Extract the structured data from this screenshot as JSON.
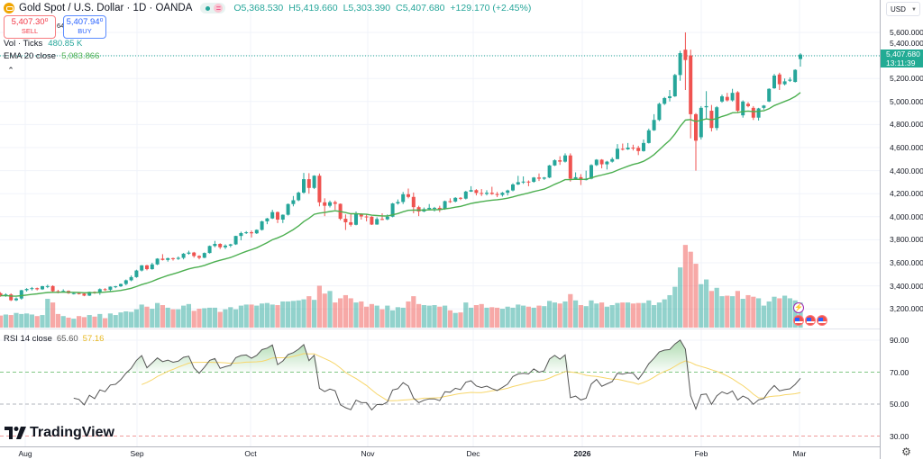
{
  "legend": {
    "symbol": "Gold Spot / U.S. Dollar · 1D · OANDA",
    "open": "O5,368.530",
    "high": "H5,419.660",
    "low": "L5,303.390",
    "close": "C5,407.680",
    "change": "+129.170 (+2.45%)",
    "sell_price": "5,407.30⁰",
    "sell_label": "SELL",
    "spread": "64.0",
    "buy_price": "5,407.94⁰",
    "buy_label": "BUY",
    "vol_label": "Vol · Ticks",
    "vol_value": "480.85 K",
    "ema_label": "EMA 20 close",
    "ema_value": "5,083.866",
    "rsi_label": "RSI 14 close",
    "rsi_value": "65.60",
    "rsi_ma_value": "57.16"
  },
  "price_axis": {
    "currency": "USD",
    "last_price": "5,407.680",
    "countdown": "13:11:39"
  },
  "watermark": "TradingView",
  "colors": {
    "up": "#26a69a",
    "down": "#ef5350",
    "ema": "#4caf50",
    "rsi": "#555555",
    "rsi_ma": "#f7d66a",
    "last_price": "#22ab94"
  },
  "chart_data": {
    "type": "candlestick",
    "y_ticks": [
      "5,600.000",
      "5,400.000",
      "5,200.000",
      "5,000.000",
      "4,800.000",
      "4,600.000",
      "4,400.000",
      "4,200.000",
      "4,000.000",
      "3,800.000",
      "3,600.000",
      "3,400.000",
      "3,200.000"
    ],
    "y_tick_values": [
      5600,
      5400,
      5200,
      5000,
      4800,
      4600,
      4400,
      4200,
      4000,
      3800,
      3600,
      3400,
      3200
    ],
    "rsi_ticks": [
      "90.00",
      "70.00",
      "50.00",
      "30.00"
    ],
    "rsi_tick_values": [
      90,
      70,
      50,
      30
    ],
    "rsi_bands": {
      "upper": 70,
      "middle": 50,
      "lower": 30
    },
    "x_ticks": [
      "Aug",
      "Sep",
      "Oct",
      "Nov",
      "Dec",
      "2026",
      "Feb",
      "Mar"
    ],
    "grid": true,
    "candles": [
      [
        3335,
        3345,
        3305,
        3315
      ],
      [
        3315,
        3335,
        3305,
        3325
      ],
      [
        3325,
        3335,
        3268,
        3275
      ],
      [
        3275,
        3300,
        3268,
        3290
      ],
      [
        3290,
        3365,
        3280,
        3362
      ],
      [
        3362,
        3380,
        3350,
        3373
      ],
      [
        3373,
        3390,
        3360,
        3380
      ],
      [
        3380,
        3385,
        3360,
        3370
      ],
      [
        3370,
        3400,
        3365,
        3397
      ],
      [
        3397,
        3410,
        3380,
        3398
      ],
      [
        3398,
        3405,
        3345,
        3353
      ],
      [
        3353,
        3365,
        3335,
        3348
      ],
      [
        3348,
        3370,
        3345,
        3356
      ],
      [
        3356,
        3360,
        3330,
        3336
      ],
      [
        3336,
        3345,
        3325,
        3336
      ],
      [
        3336,
        3345,
        3325,
        3332
      ],
      [
        3332,
        3340,
        3310,
        3315
      ],
      [
        3315,
        3350,
        3312,
        3348
      ],
      [
        3348,
        3352,
        3330,
        3338
      ],
      [
        3338,
        3378,
        3322,
        3371
      ],
      [
        3371,
        3380,
        3355,
        3366
      ],
      [
        3366,
        3395,
        3352,
        3393
      ],
      [
        3393,
        3400,
        3380,
        3396
      ],
      [
        3396,
        3420,
        3390,
        3416
      ],
      [
        3416,
        3455,
        3405,
        3448
      ],
      [
        3448,
        3490,
        3440,
        3476
      ],
      [
        3476,
        3540,
        3470,
        3533
      ],
      [
        3533,
        3580,
        3525,
        3578
      ],
      [
        3578,
        3582,
        3535,
        3545
      ],
      [
        3545,
        3600,
        3540,
        3586
      ],
      [
        3586,
        3640,
        3580,
        3636
      ],
      [
        3636,
        3675,
        3620,
        3625
      ],
      [
        3625,
        3645,
        3610,
        3640
      ],
      [
        3640,
        3645,
        3620,
        3634
      ],
      [
        3634,
        3655,
        3625,
        3643
      ],
      [
        3643,
        3685,
        3630,
        3679
      ],
      [
        3679,
        3705,
        3670,
        3689
      ],
      [
        3689,
        3695,
        3645,
        3659
      ],
      [
        3659,
        3665,
        3630,
        3644
      ],
      [
        3644,
        3690,
        3640,
        3685
      ],
      [
        3685,
        3750,
        3680,
        3746
      ],
      [
        3746,
        3790,
        3735,
        3764
      ],
      [
        3764,
        3770,
        3720,
        3735
      ],
      [
        3735,
        3760,
        3720,
        3749
      ],
      [
        3749,
        3765,
        3735,
        3760
      ],
      [
        3760,
        3835,
        3755,
        3833
      ],
      [
        3833,
        3870,
        3795,
        3858
      ],
      [
        3858,
        3875,
        3850,
        3865
      ],
      [
        3865,
        3880,
        3820,
        3856
      ],
      [
        3856,
        3890,
        3850,
        3886
      ],
      [
        3886,
        3965,
        3880,
        3960
      ],
      [
        3960,
        3990,
        3935,
        3985
      ],
      [
        3985,
        4060,
        3980,
        4040
      ],
      [
        4040,
        4045,
        3945,
        3975
      ],
      [
        3975,
        4020,
        3945,
        4017
      ],
      [
        4017,
        4115,
        4010,
        4110
      ],
      [
        4110,
        4180,
        4090,
        4143
      ],
      [
        4143,
        4218,
        4135,
        4209
      ],
      [
        4209,
        4380,
        4200,
        4326
      ],
      [
        4326,
        4378,
        4200,
        4250
      ],
      [
        4250,
        4360,
        4240,
        4356
      ],
      [
        4356,
        4375,
        4090,
        4125
      ],
      [
        4125,
        4160,
        4005,
        4095
      ],
      [
        4095,
        4140,
        4080,
        4126
      ],
      [
        4126,
        4140,
        4060,
        4112
      ],
      [
        4112,
        4115,
        3970,
        3982
      ],
      [
        3982,
        4020,
        3885,
        3952
      ],
      [
        3952,
        4030,
        3915,
        3930
      ],
      [
        3930,
        4045,
        3925,
        4024
      ],
      [
        4024,
        4030,
        3975,
        4002
      ],
      [
        4002,
        4020,
        3960,
        4000
      ],
      [
        4000,
        4005,
        3928,
        3932
      ],
      [
        3932,
        3995,
        3930,
        3980
      ],
      [
        3980,
        4030,
        3970,
        3977
      ],
      [
        3977,
        4020,
        3970,
        4000
      ],
      [
        4000,
        4120,
        3995,
        4115
      ],
      [
        4115,
        4150,
        4105,
        4128
      ],
      [
        4128,
        4215,
        4110,
        4195
      ],
      [
        4195,
        4245,
        4160,
        4172
      ],
      [
        4172,
        4210,
        4030,
        4083
      ],
      [
        4083,
        4095,
        4005,
        4045
      ],
      [
        4045,
        4080,
        4040,
        4066
      ],
      [
        4066,
        4110,
        4060,
        4077
      ],
      [
        4077,
        4085,
        4045,
        4077
      ],
      [
        4077,
        4095,
        4040,
        4065
      ],
      [
        4065,
        4140,
        4060,
        4135
      ],
      [
        4135,
        4160,
        4120,
        4132
      ],
      [
        4132,
        4170,
        4125,
        4164
      ],
      [
        4164,
        4170,
        4145,
        4157
      ],
      [
        4157,
        4225,
        4150,
        4218
      ],
      [
        4218,
        4265,
        4215,
        4231
      ],
      [
        4231,
        4240,
        4185,
        4206
      ],
      [
        4206,
        4240,
        4180,
        4198
      ],
      [
        4198,
        4230,
        4185,
        4208
      ],
      [
        4208,
        4260,
        4190,
        4197
      ],
      [
        4197,
        4215,
        4170,
        4189
      ],
      [
        4189,
        4215,
        4175,
        4208
      ],
      [
        4208,
        4235,
        4185,
        4228
      ],
      [
        4228,
        4290,
        4220,
        4280
      ],
      [
        4280,
        4355,
        4275,
        4300
      ],
      [
        4300,
        4350,
        4285,
        4305
      ],
      [
        4305,
        4315,
        4265,
        4303
      ],
      [
        4303,
        4345,
        4295,
        4340
      ],
      [
        4340,
        4375,
        4310,
        4330
      ],
      [
        4330,
        4345,
        4320,
        4340
      ],
      [
        4340,
        4450,
        4335,
        4445
      ],
      [
        4445,
        4498,
        4440,
        4490
      ],
      [
        4490,
        4525,
        4450,
        4478
      ],
      [
        4478,
        4550,
        4470,
        4532
      ],
      [
        4532,
        4550,
        4305,
        4330
      ],
      [
        4330,
        4385,
        4330,
        4343
      ],
      [
        4343,
        4370,
        4275,
        4318
      ],
      [
        4318,
        4400,
        4315,
        4330
      ],
      [
        4330,
        4455,
        4325,
        4448
      ],
      [
        4448,
        4500,
        4440,
        4495
      ],
      [
        4495,
        4500,
        4420,
        4455
      ],
      [
        4455,
        4485,
        4410,
        4478
      ],
      [
        4478,
        4515,
        4470,
        4500
      ],
      [
        4500,
        4630,
        4500,
        4590
      ],
      [
        4590,
        4635,
        4575,
        4585
      ],
      [
        4585,
        4640,
        4580,
        4600
      ],
      [
        4600,
        4625,
        4575,
        4598
      ],
      [
        4598,
        4615,
        4535,
        4570
      ],
      [
        4570,
        4670,
        4565,
        4640
      ],
      [
        4640,
        4765,
        4635,
        4750
      ],
      [
        4750,
        4890,
        4745,
        4840
      ],
      [
        4840,
        4990,
        4830,
        4980
      ],
      [
        4980,
        5040,
        4970,
        5030
      ],
      [
        5030,
        5100,
        5000,
        5045
      ],
      [
        5045,
        5240,
        5040,
        5230
      ],
      [
        5230,
        5440,
        5180,
        5420
      ],
      [
        5450,
        5600,
        5100,
        5360
      ],
      [
        5400,
        5450,
        4680,
        4890
      ],
      [
        4890,
        4900,
        4400,
        4660
      ],
      [
        4690,
        4960,
        4670,
        4945
      ],
      [
        4950,
        5090,
        4850,
        4960
      ],
      [
        4920,
        4970,
        4740,
        4770
      ],
      [
        4770,
        4960,
        4750,
        4950
      ],
      [
        5000,
        5060,
        4990,
        5045
      ],
      [
        5040,
        5075,
        5000,
        5010
      ],
      [
        5010,
        5110,
        5000,
        5075
      ],
      [
        5080,
        5090,
        4900,
        4920
      ],
      [
        4880,
        5010,
        4860,
        5000
      ],
      [
        4980,
        4995,
        4950,
        4960
      ],
      [
        4945,
        4960,
        4840,
        4860
      ],
      [
        4860,
        4945,
        4835,
        4940
      ],
      [
        4945,
        4970,
        4930,
        4965
      ],
      [
        5000,
        5115,
        4995,
        5110
      ],
      [
        5115,
        5240,
        5110,
        5225
      ],
      [
        5235,
        5250,
        5100,
        5150
      ],
      [
        5150,
        5200,
        5140,
        5175
      ],
      [
        5180,
        5210,
        5170,
        5190
      ],
      [
        5170,
        5280,
        5165,
        5275
      ],
      [
        5368.53,
        5419.66,
        5303.39,
        5407.68
      ]
    ],
    "volume_k": [
      230,
      250,
      240,
      280,
      260,
      270,
      250,
      220,
      240,
      550,
      480,
      260,
      220,
      190,
      170,
      220,
      200,
      240,
      210,
      260,
      180,
      270,
      240,
      290,
      310,
      300,
      350,
      440,
      400,
      360,
      470,
      430,
      380,
      350,
      350,
      420,
      450,
      320,
      360,
      370,
      380,
      380,
      300,
      350,
      390,
      350,
      420,
      440,
      440,
      420,
      460,
      470,
      440,
      430,
      500,
      500,
      510,
      520,
      540,
      600,
      530,
      800,
      650,
      700,
      480,
      560,
      620,
      560,
      480,
      500,
      400,
      450,
      420,
      350,
      420,
      330,
      390,
      380,
      500,
      600,
      450,
      430,
      420,
      430,
      400,
      420,
      330,
      280,
      290,
      480,
      380,
      430,
      450,
      380,
      390,
      380,
      360,
      400,
      380,
      440,
      420,
      400,
      380,
      420,
      410,
      510,
      480,
      460,
      500,
      640,
      520,
      430,
      410,
      520,
      460,
      480,
      400,
      430,
      470,
      480,
      480,
      460,
      470,
      470,
      520,
      430,
      480,
      540,
      620,
      780,
      1150,
      1580,
      1450,
      1220,
      830,
      920,
      700,
      760,
      600,
      610,
      600,
      700,
      550,
      620,
      590,
      560,
      420,
      500,
      590,
      560,
      610,
      560,
      520,
      480.85
    ],
    "indicators": {
      "ema_period": 20,
      "rsi_period": 14,
      "rsi_ma_period": 14
    }
  }
}
